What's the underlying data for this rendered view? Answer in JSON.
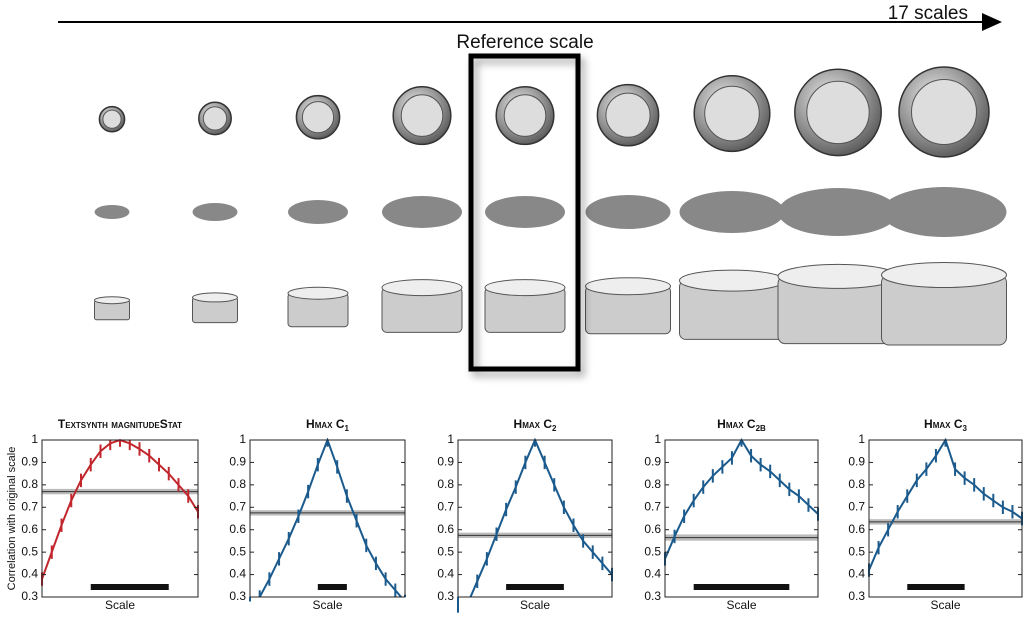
{
  "header": {
    "arrow_label": "17 scales",
    "reference_label": "Reference scale"
  },
  "chart_data": [
    {
      "type": "line",
      "title": "Textsynth magnitudeStat",
      "ylabel": "Correlation with original scale",
      "xlabel": "Scale",
      "x": [
        1,
        2,
        3,
        4,
        5,
        6,
        7,
        8,
        9,
        10,
        11,
        12,
        13,
        14,
        15,
        16,
        17
      ],
      "xlim": [
        1,
        17
      ],
      "ylim": [
        0.3,
        1
      ],
      "yticks": [
        0.3,
        0.4,
        0.5,
        0.6,
        0.7,
        0.8,
        0.9,
        1
      ],
      "series": [
        {
          "color": "#c1272d",
          "values": [
            0.38,
            0.5,
            0.62,
            0.73,
            0.82,
            0.89,
            0.95,
            0.985,
            1,
            0.985,
            0.96,
            0.93,
            0.89,
            0.85,
            0.8,
            0.75,
            0.68
          ],
          "error": 0.03
        }
      ],
      "baseline": 0.77,
      "baseline_error": 0.012,
      "bar_range": [
        6,
        14
      ]
    },
    {
      "type": "line",
      "title": "Hmax C",
      "title_sub": "1",
      "xlabel": "Scale",
      "x": [
        1,
        2,
        3,
        4,
        5,
        6,
        7,
        8,
        9,
        10,
        11,
        12,
        13,
        14,
        15,
        16,
        17
      ],
      "xlim": [
        1,
        17
      ],
      "ylim": [
        0.3,
        1
      ],
      "yticks": [
        0.3,
        0.4,
        0.5,
        0.6,
        0.7,
        0.8,
        0.9,
        1
      ],
      "series": [
        {
          "color": "#1b5a8c",
          "values": [
            0.25,
            0.3,
            0.38,
            0.47,
            0.56,
            0.66,
            0.77,
            0.89,
            1,
            0.88,
            0.75,
            0.64,
            0.53,
            0.45,
            0.38,
            0.33,
            0.28
          ],
          "error": 0.03
        }
      ],
      "baseline": 0.675,
      "baseline_error": 0.012,
      "bar_range": [
        8,
        11
      ]
    },
    {
      "type": "line",
      "title": "Hmax C",
      "title_sub": "2",
      "xlabel": "Scale",
      "x": [
        1,
        2,
        3,
        4,
        5,
        6,
        7,
        8,
        9,
        10,
        11,
        12,
        13,
        14,
        15,
        16,
        17
      ],
      "xlim": [
        1,
        17
      ],
      "ylim": [
        0.3,
        1
      ],
      "yticks": [
        0.3,
        0.4,
        0.5,
        0.6,
        0.7,
        0.8,
        0.9,
        1
      ],
      "series": [
        {
          "color": "#1b5a8c",
          "values": [
            0.2,
            0.27,
            0.37,
            0.47,
            0.58,
            0.69,
            0.79,
            0.9,
            1,
            0.9,
            0.8,
            0.7,
            0.62,
            0.55,
            0.5,
            0.45,
            0.4
          ],
          "error": 0.03
        }
      ],
      "baseline": 0.575,
      "baseline_error": 0.012,
      "bar_range": [
        6,
        12
      ]
    },
    {
      "type": "line",
      "title": "Hmax C",
      "title_sub": "2B",
      "xlabel": "Scale",
      "x": [
        1,
        2,
        3,
        4,
        5,
        6,
        7,
        8,
        9,
        10,
        11,
        12,
        13,
        14,
        15,
        16,
        17
      ],
      "xlim": [
        1,
        17
      ],
      "ylim": [
        0.3,
        1
      ],
      "yticks": [
        0.3,
        0.4,
        0.5,
        0.6,
        0.7,
        0.8,
        0.9,
        1
      ],
      "series": [
        {
          "color": "#1b5a8c",
          "values": [
            0.47,
            0.57,
            0.66,
            0.73,
            0.79,
            0.84,
            0.88,
            0.92,
            1,
            0.93,
            0.89,
            0.86,
            0.82,
            0.78,
            0.75,
            0.71,
            0.67
          ],
          "error": 0.03
        }
      ],
      "baseline": 0.565,
      "baseline_error": 0.014,
      "bar_range": [
        4,
        14
      ]
    },
    {
      "type": "line",
      "title": "Hmax C",
      "title_sub": "3",
      "xlabel": "Scale",
      "x": [
        1,
        2,
        3,
        4,
        5,
        6,
        7,
        8,
        9,
        10,
        11,
        12,
        13,
        14,
        15,
        16,
        17
      ],
      "xlim": [
        1,
        17
      ],
      "ylim": [
        0.3,
        1
      ],
      "yticks": [
        0.3,
        0.4,
        0.5,
        0.6,
        0.7,
        0.8,
        0.9,
        1
      ],
      "series": [
        {
          "color": "#1b5a8c",
          "values": [
            0.42,
            0.52,
            0.6,
            0.68,
            0.75,
            0.82,
            0.87,
            0.93,
            1,
            0.87,
            0.83,
            0.8,
            0.76,
            0.73,
            0.7,
            0.68,
            0.65
          ],
          "error": 0.03
        }
      ],
      "baseline": 0.635,
      "baseline_error": 0.012,
      "bar_range": [
        5,
        11
      ]
    }
  ]
}
